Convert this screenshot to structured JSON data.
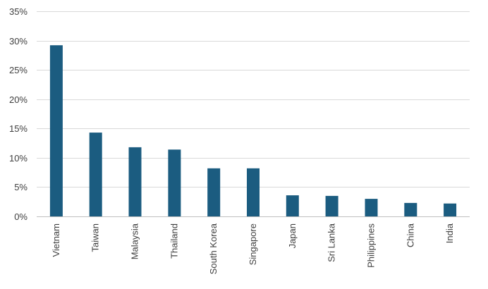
{
  "chart_data": {
    "type": "bar",
    "title": "",
    "xlabel": "",
    "ylabel": "",
    "categories": [
      "Vietnam",
      "Taiwan",
      "Malaysia",
      "Thailand",
      "South Korea",
      "Singapore",
      "Japan",
      "Sri Lanka",
      "Philippines",
      "China",
      "India"
    ],
    "values": [
      29.2,
      14.3,
      11.8,
      11.4,
      8.2,
      8.2,
      3.6,
      3.5,
      3.0,
      2.3,
      2.2
    ],
    "ylim": [
      0,
      35
    ],
    "yticks": [
      0,
      5,
      10,
      15,
      20,
      25,
      30,
      35
    ],
    "ytick_labels": [
      "0%",
      "5%",
      "10%",
      "15%",
      "20%",
      "25%",
      "30%",
      "35%"
    ],
    "grid": true,
    "legend": "none",
    "bar_color": "#1b5c80"
  }
}
